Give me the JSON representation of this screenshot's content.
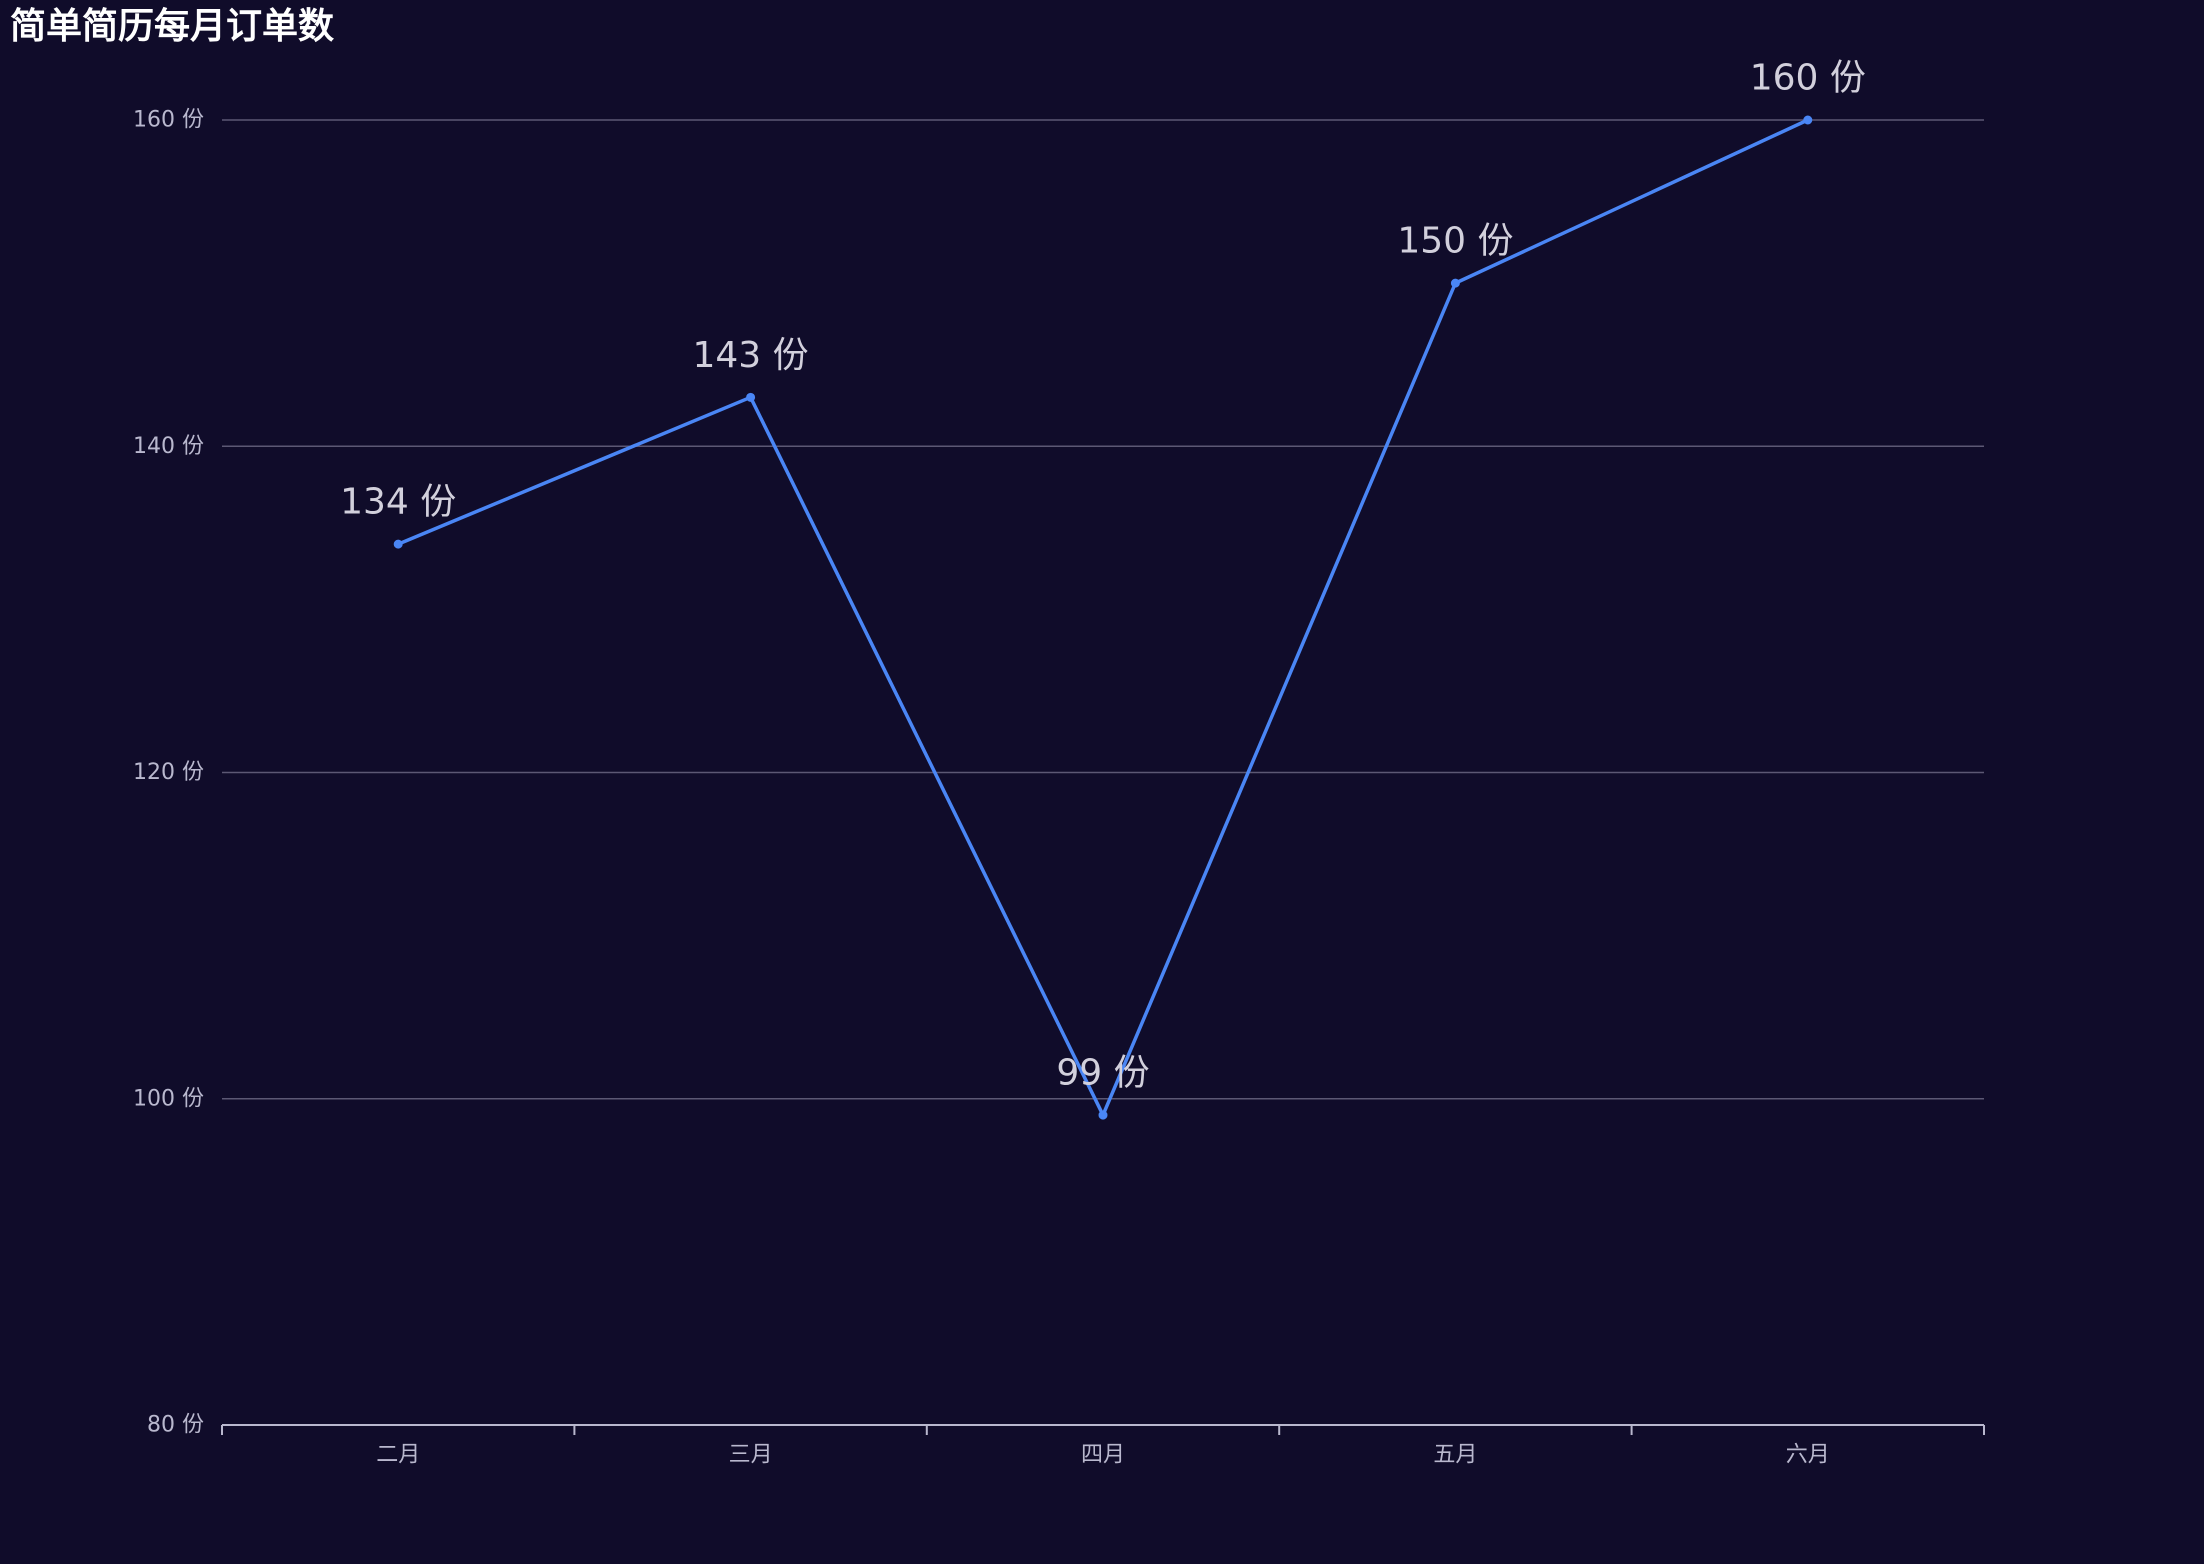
{
  "title": "简单简历每月订单数",
  "colors": {
    "background": "#100c2a",
    "series": "#4a86f5",
    "axis": "#b9b8ce",
    "grid": "#5c5874",
    "title": "#ffffff",
    "data_label": "#d2d0dc"
  },
  "chart_data": {
    "type": "line",
    "title": "简单简历每月订单数",
    "xlabel": "",
    "ylabel": "",
    "categories": [
      "二月",
      "三月",
      "四月",
      "五月",
      "六月"
    ],
    "series": [
      {
        "values": [
          134,
          143,
          99,
          150,
          160
        ]
      }
    ],
    "value_suffix": " 份",
    "ylim": [
      80,
      160
    ],
    "yticks": [
      80,
      100,
      120,
      140,
      160
    ],
    "ytick_labels": [
      "80 份",
      "100 份",
      "120 份",
      "140 份",
      "160 份"
    ],
    "data_labels": [
      "134 份",
      "143 份",
      "99 份",
      "150 份",
      "160 份"
    ],
    "grid": true,
    "legend": false
  }
}
